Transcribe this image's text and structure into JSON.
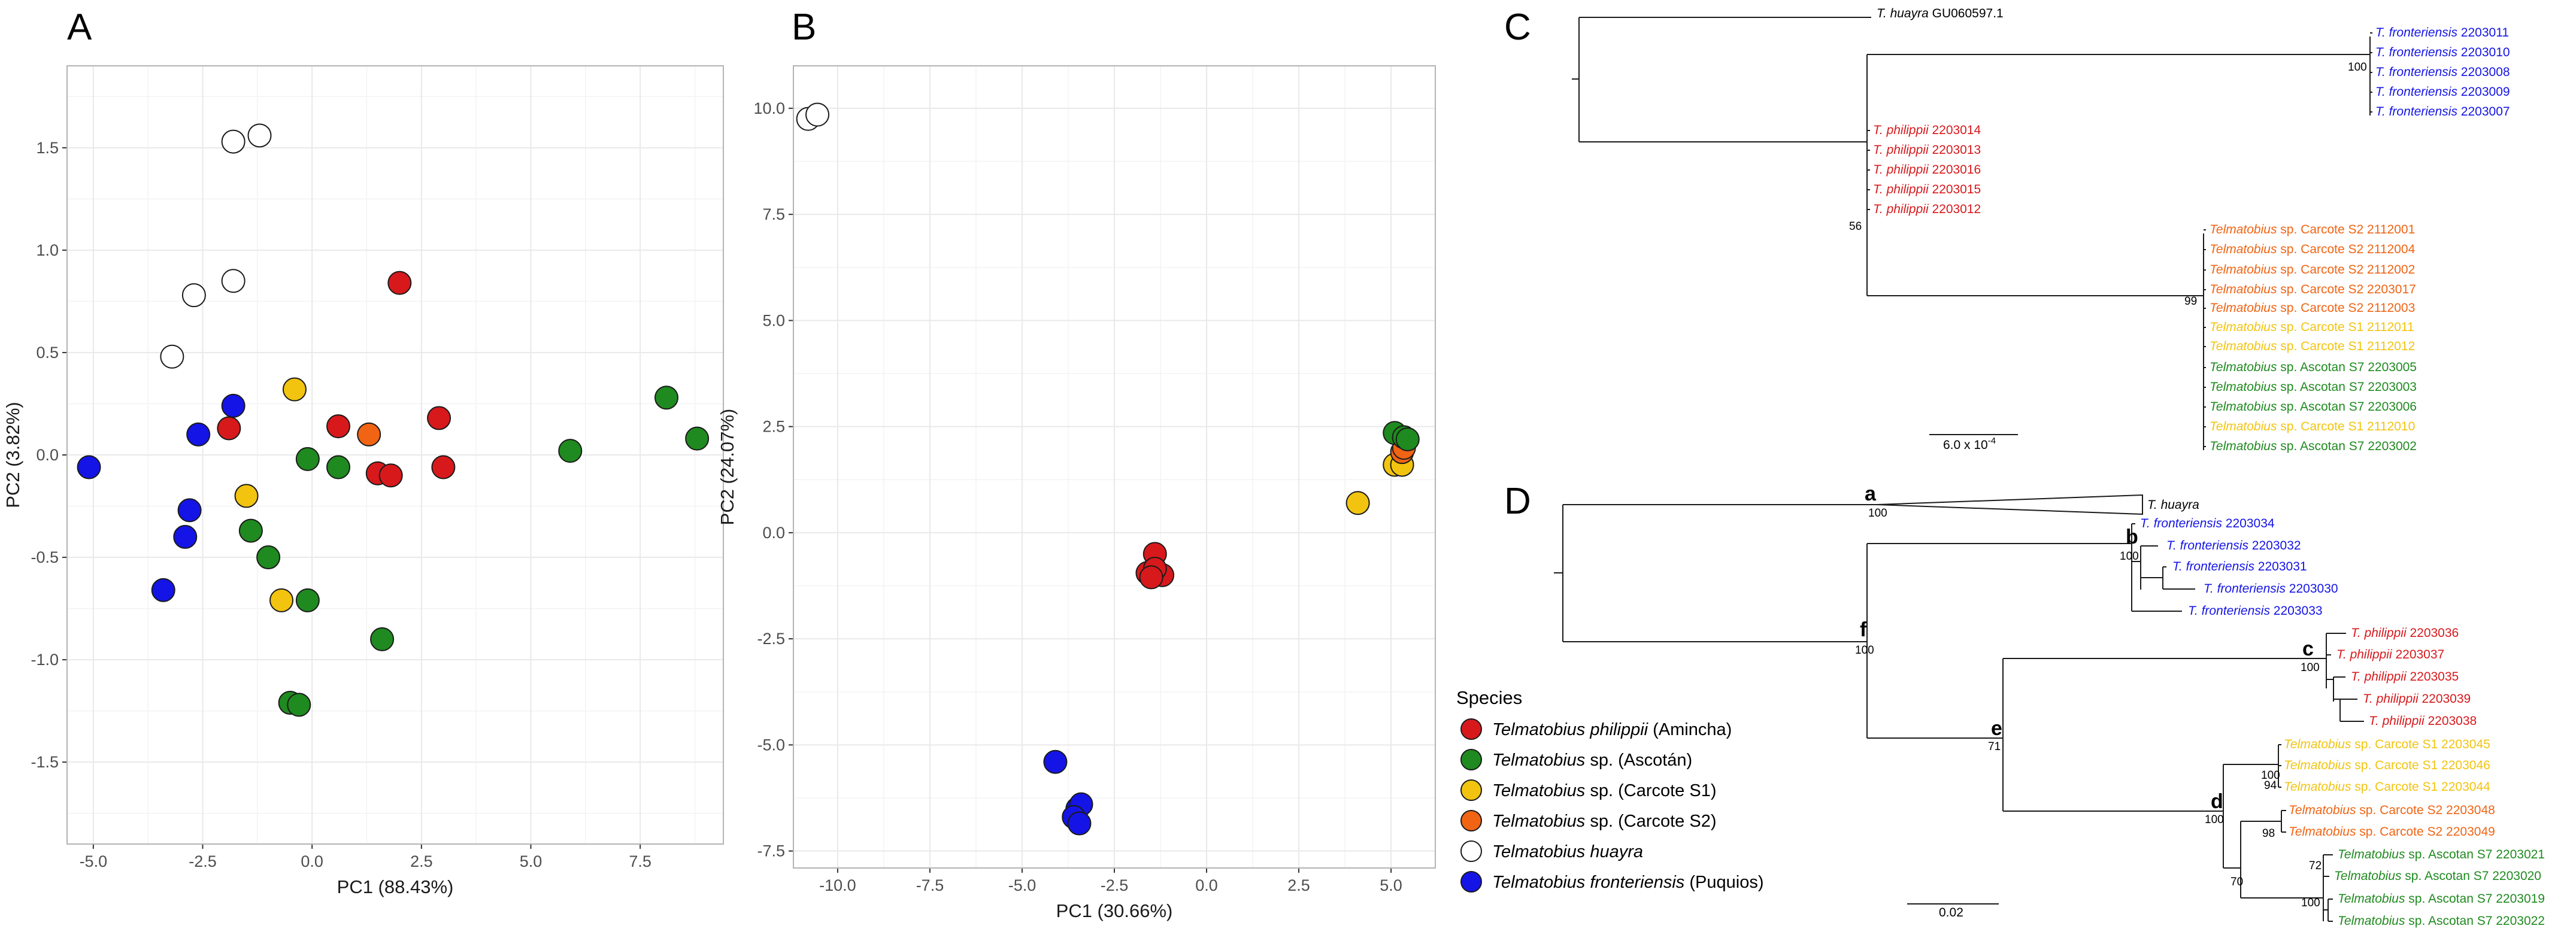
{
  "colors": {
    "philippii": "#d7191c",
    "ascotan": "#1f8a1f",
    "carcote_s1": "#f2c40f",
    "carcote_s2": "#f06414",
    "huayra": "#ffffff",
    "fronteriensis": "#1414e6",
    "grid": "#e9e9e9",
    "frame": "#b3b3b3"
  },
  "panels": {
    "A": "A",
    "B": "B",
    "C": "C",
    "D": "D"
  },
  "legend": {
    "title": "Species",
    "items": [
      {
        "key": "philippii",
        "genus": "Telmatobius",
        "rest_italic": "philippii",
        "rest": " (Amincha)"
      },
      {
        "key": "ascotan",
        "genus": "Telmatobius",
        "rest_italic": "",
        "rest": " sp. (Ascotán)"
      },
      {
        "key": "carcote_s1",
        "genus": "Telmatobius",
        "rest_italic": "",
        "rest": " sp. (Carcote S1)"
      },
      {
        "key": "carcote_s2",
        "genus": "Telmatobius",
        "rest_italic": "",
        "rest": " sp. (Carcote S2)"
      },
      {
        "key": "huayra",
        "genus": "Telmatobius",
        "rest_italic": "huayra",
        "rest": ""
      },
      {
        "key": "fronteriensis",
        "genus": "Telmatobius",
        "rest_italic": "fronteriensis",
        "rest": " (Puquios)"
      }
    ]
  },
  "chart_data": [
    {
      "panel": "A",
      "type": "scatter",
      "title": "",
      "xlabel": "PC1 (88.43%)",
      "ylabel": "PC2 (3.82%)",
      "xlim": [
        -5.6,
        9.4
      ],
      "ylim": [
        -1.9,
        1.9
      ],
      "xticks": [
        -5.0,
        -2.5,
        0.0,
        2.5,
        5.0,
        7.5
      ],
      "xtick_labels": [
        "-5.0",
        "-2.5",
        "0.0",
        "2.5",
        "5.0",
        "7.5"
      ],
      "yticks": [
        -1.5,
        -1.0,
        -0.5,
        0.0,
        0.5,
        1.0,
        1.5
      ],
      "ytick_labels": [
        "-1.5",
        "-1.0",
        "-0.5",
        "0.0",
        "0.5",
        "1.0",
        "1.5"
      ],
      "grid": true,
      "series": [
        {
          "key": "huayra",
          "points": [
            [
              -1.8,
              1.53
            ],
            [
              -1.2,
              1.56
            ],
            [
              -2.7,
              0.78
            ],
            [
              -1.8,
              0.85
            ],
            [
              -3.2,
              0.48
            ]
          ]
        },
        {
          "key": "philippii",
          "points": [
            [
              2.0,
              0.84
            ],
            [
              -1.9,
              0.13
            ],
            [
              0.6,
              0.14
            ],
            [
              2.9,
              0.18
            ],
            [
              1.5,
              -0.09
            ],
            [
              1.8,
              -0.1
            ],
            [
              3.0,
              -0.06
            ]
          ]
        },
        {
          "key": "carcote_s2",
          "points": [
            [
              1.3,
              0.1
            ]
          ]
        },
        {
          "key": "carcote_s1",
          "points": [
            [
              -0.4,
              0.32
            ],
            [
              -1.5,
              -0.2
            ],
            [
              -0.7,
              -0.71
            ]
          ]
        },
        {
          "key": "ascotan",
          "points": [
            [
              8.1,
              0.28
            ],
            [
              8.8,
              0.08
            ],
            [
              5.9,
              0.02
            ],
            [
              -0.1,
              -0.02
            ],
            [
              0.6,
              -0.06
            ],
            [
              -1.4,
              -0.37
            ],
            [
              -1.0,
              -0.5
            ],
            [
              -0.1,
              -0.71
            ],
            [
              1.6,
              -0.9
            ],
            [
              -0.5,
              -1.21
            ],
            [
              -0.3,
              -1.22
            ]
          ]
        },
        {
          "key": "fronteriensis",
          "points": [
            [
              -1.8,
              0.24
            ],
            [
              -2.6,
              0.1
            ],
            [
              -5.1,
              -0.06
            ],
            [
              -2.8,
              -0.27
            ],
            [
              -2.9,
              -0.4
            ],
            [
              -3.4,
              -0.66
            ]
          ]
        }
      ]
    },
    {
      "panel": "B",
      "type": "scatter",
      "title": "",
      "xlabel": "PC1 (30.66%)",
      "ylabel": "PC2 (24.07%)",
      "xlim": [
        -11.2,
        6.2
      ],
      "ylim": [
        -7.9,
        11.0
      ],
      "xticks": [
        -10.0,
        -7.5,
        -5.0,
        -2.5,
        0.0,
        2.5,
        5.0
      ],
      "xtick_labels": [
        "-10.0",
        "-7.5",
        "-5.0",
        "-2.5",
        "0.0",
        "2.5",
        "5.0"
      ],
      "yticks": [
        -7.5,
        -5.0,
        -2.5,
        0.0,
        2.5,
        5.0,
        7.5,
        10.0
      ],
      "ytick_labels": [
        "-7.5",
        "-5.0",
        "-2.5",
        "0.0",
        "2.5",
        "5.0",
        "7.5",
        "10.0"
      ],
      "grid": true,
      "series": [
        {
          "key": "huayra",
          "points": [
            [
              -10.8,
              9.75
            ],
            [
              -10.55,
              9.85
            ]
          ]
        },
        {
          "key": "philippii",
          "points": [
            [
              -1.4,
              -0.5
            ],
            [
              -1.6,
              -0.95
            ],
            [
              -1.2,
              -1.0
            ],
            [
              -1.4,
              -0.85
            ],
            [
              -1.5,
              -1.05
            ]
          ]
        },
        {
          "key": "carcote_s1",
          "points": [
            [
              4.1,
              0.7
            ],
            [
              5.1,
              1.6
            ],
            [
              5.3,
              1.6
            ]
          ]
        },
        {
          "key": "carcote_s2",
          "points": [
            [
              5.3,
              1.9
            ],
            [
              5.35,
              2.0
            ]
          ]
        },
        {
          "key": "ascotan",
          "points": [
            [
              5.1,
              2.35
            ],
            [
              5.35,
              2.25
            ],
            [
              5.45,
              2.2
            ]
          ]
        },
        {
          "key": "fronteriensis",
          "points": [
            [
              -4.1,
              -5.4
            ],
            [
              -3.5,
              -6.5
            ],
            [
              -3.4,
              -6.4
            ],
            [
              -3.6,
              -6.7
            ],
            [
              -3.45,
              -6.85
            ]
          ]
        }
      ]
    }
  ],
  "tree_C": {
    "scale_label": "6.0 x 10",
    "scale_exp": "-4",
    "supports": {
      "n_outer": "56",
      "n_front": "100",
      "n_clade99": "99"
    },
    "leaves": [
      {
        "key": "huayra",
        "name": "T. huayra",
        "code": "GU060597.1"
      },
      {
        "key": "fronteriensis",
        "name": "T. fronteriensis",
        "code": "2203011"
      },
      {
        "key": "fronteriensis",
        "name": "T. fronteriensis",
        "code": "2203010"
      },
      {
        "key": "fronteriensis",
        "name": "T. fronteriensis",
        "code": "2203008"
      },
      {
        "key": "fronteriensis",
        "name": "T. fronteriensis",
        "code": "2203009"
      },
      {
        "key": "fronteriensis",
        "name": "T. fronteriensis",
        "code": "2203007"
      },
      {
        "key": "philippii",
        "name": "T. philippii",
        "code": "2203014"
      },
      {
        "key": "philippii",
        "name": "T. philippii",
        "code": "2203013"
      },
      {
        "key": "philippii",
        "name": "T. philippii",
        "code": "2203016"
      },
      {
        "key": "philippii",
        "name": "T. philippii",
        "code": "2203015"
      },
      {
        "key": "philippii",
        "name": "T. philippii",
        "code": "2203012"
      },
      {
        "key": "carcote_s2",
        "name": "Telmatobius",
        "rest": " sp. Carcote S2 ",
        "code": "2112001"
      },
      {
        "key": "carcote_s2",
        "name": "Telmatobius",
        "rest": " sp. Carcote S2 ",
        "code": "2112004"
      },
      {
        "key": "carcote_s2",
        "name": "Telmatobius",
        "rest": " sp. Carcote S2 ",
        "code": "2112002"
      },
      {
        "key": "carcote_s2",
        "name": "Telmatobius",
        "rest": " sp. Carcote S2 ",
        "code": "2203017"
      },
      {
        "key": "carcote_s2",
        "name": "Telmatobius",
        "rest": " sp. Carcote S2 ",
        "code": "2112003"
      },
      {
        "key": "carcote_s1",
        "name": "Telmatobius",
        "rest": " sp. Carcote S1 ",
        "code": "2112011"
      },
      {
        "key": "carcote_s1",
        "name": "Telmatobius",
        "rest": " sp. Carcote S1 ",
        "code": "2112012"
      },
      {
        "key": "ascotan",
        "name": "Telmatobius",
        "rest": " sp. Ascotan S7 ",
        "code": "2203005"
      },
      {
        "key": "ascotan",
        "name": "Telmatobius",
        "rest": " sp. Ascotan S7 ",
        "code": "2203003"
      },
      {
        "key": "ascotan",
        "name": "Telmatobius",
        "rest": " sp. Ascotan S7 ",
        "code": "2203006"
      },
      {
        "key": "carcote_s1",
        "name": "Telmatobius",
        "rest": " sp. Carcote S1 ",
        "code": "2112010"
      },
      {
        "key": "ascotan",
        "name": "Telmatobius",
        "rest": " sp. Ascotan S7 ",
        "code": "2203002"
      }
    ]
  },
  "tree_D": {
    "scale_label": "0.02",
    "node_letters": {
      "a": "a",
      "b": "b",
      "c": "c",
      "d": "d",
      "e": "e",
      "f": "f"
    },
    "supports": {
      "a": "100",
      "b": "100",
      "c": "100",
      "d": "100",
      "e": "71",
      "f": "100",
      "s1": "100",
      "s94": "94",
      "s98": "98",
      "s70": "70",
      "s72": "72",
      "s100b": "100"
    },
    "collapsed": {
      "key": "huayra",
      "name": "T. huayra"
    },
    "leaves": [
      {
        "key": "fronteriensis",
        "name": "T. fronteriensis",
        "code": "2203034"
      },
      {
        "key": "fronteriensis",
        "name": "T. fronteriensis",
        "code": "2203032"
      },
      {
        "key": "fronteriensis",
        "name": "T. fronteriensis",
        "code": "2203031"
      },
      {
        "key": "fronteriensis",
        "name": "T. fronteriensis",
        "code": "2203030"
      },
      {
        "key": "fronteriensis",
        "name": "T. fronteriensis",
        "code": "2203033"
      },
      {
        "key": "philippii",
        "name": "T. philippii",
        "code": "2203036"
      },
      {
        "key": "philippii",
        "name": "T. philippii",
        "code": "2203037"
      },
      {
        "key": "philippii",
        "name": "T. philippii",
        "code": "2203035"
      },
      {
        "key": "philippii",
        "name": "T. philippii",
        "code": "2203039"
      },
      {
        "key": "philippii",
        "name": "T. philippii",
        "code": "2203038"
      },
      {
        "key": "carcote_s1",
        "name": "Telmatobius",
        "rest": " sp. Carcote S1 ",
        "code": "2203045"
      },
      {
        "key": "carcote_s1",
        "name": "Telmatobius",
        "rest": " sp. Carcote S1 ",
        "code": "2203046"
      },
      {
        "key": "carcote_s1",
        "name": "Telmatobius",
        "rest": " sp. Carcote S1 ",
        "code": "2203044"
      },
      {
        "key": "carcote_s2",
        "name": "Telmatobius",
        "rest": " sp. Carcote S2 ",
        "code": "2203048"
      },
      {
        "key": "carcote_s2",
        "name": "Telmatobius",
        "rest": " sp. Carcote S2 ",
        "code": "2203049"
      },
      {
        "key": "ascotan",
        "name": "Telmatobius",
        "rest": " sp. Ascotan S7 ",
        "code": "2203021"
      },
      {
        "key": "ascotan",
        "name": "Telmatobius",
        "rest": " sp. Ascotan S7 ",
        "code": "2203020"
      },
      {
        "key": "ascotan",
        "name": "Telmatobius",
        "rest": " sp. Ascotan S7 ",
        "code": "2203019"
      },
      {
        "key": "ascotan",
        "name": "Telmatobius",
        "rest": " sp. Ascotan S7 ",
        "code": "2203022"
      }
    ]
  }
}
